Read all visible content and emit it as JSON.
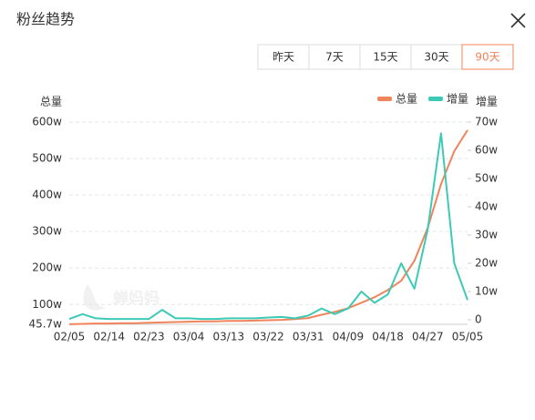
{
  "header": {
    "title": "粉丝趋势"
  },
  "buttons": [
    "昨天",
    "7天",
    "15天",
    "30天",
    "90天"
  ],
  "active_button": 4,
  "watermark": "蝉妈妈",
  "chart_data": {
    "type": "line",
    "y_axis_label": "总量",
    "y2_axis_label": "增量",
    "categories": [
      "02/05",
      null,
      null,
      "02/14",
      null,
      null,
      "02/23",
      null,
      null,
      "03/04",
      null,
      null,
      "03/13",
      null,
      null,
      "03/22",
      null,
      null,
      "03/31",
      null,
      null,
      "04/09",
      null,
      null,
      "04/18",
      null,
      null,
      "04/27",
      null,
      null,
      "05/05"
    ],
    "series": [
      {
        "name": "总量",
        "color": "#f0845c",
        "values": [
          46,
          47,
          48,
          48,
          49,
          49,
          50,
          51,
          52,
          53,
          54,
          54,
          55,
          55,
          56,
          57,
          58,
          60,
          63,
          72,
          80,
          90,
          105,
          120,
          140,
          165,
          220,
          310,
          430,
          520,
          578
        ]
      },
      {
        "name": "增量",
        "color": "#3dcab5",
        "axis": "y2",
        "values": [
          0.3,
          2,
          0.5,
          0.3,
          0.3,
          0.3,
          0.3,
          3.5,
          0.5,
          0.5,
          0.3,
          0.3,
          0.5,
          0.5,
          0.5,
          0.8,
          1,
          0.5,
          1.5,
          4,
          2,
          4,
          10,
          6,
          9,
          20,
          11,
          32,
          66,
          20,
          7
        ]
      }
    ],
    "ylim": [
      45.7,
      600
    ],
    "yticks": [
      {
        "value": 45.7,
        "label": "45.7w"
      },
      {
        "value": 100,
        "label": "100w"
      },
      {
        "value": 200,
        "label": "200w"
      },
      {
        "value": 300,
        "label": "300w"
      },
      {
        "value": 400,
        "label": "400w"
      },
      {
        "value": 500,
        "label": "500w"
      },
      {
        "value": 600,
        "label": "600w"
      }
    ],
    "y2lim": [
      0,
      70
    ],
    "y2ticks": [
      0,
      {
        "value": 10,
        "label": "10w"
      },
      {
        "value": 20,
        "label": "20w"
      },
      {
        "value": 30,
        "label": "30w"
      },
      {
        "value": 40,
        "label": "40w"
      },
      {
        "value": 50,
        "label": "50w"
      },
      {
        "value": 60,
        "label": "60w"
      },
      {
        "value": 70,
        "label": "70w"
      }
    ],
    "grid": true,
    "legend": "top-right"
  }
}
